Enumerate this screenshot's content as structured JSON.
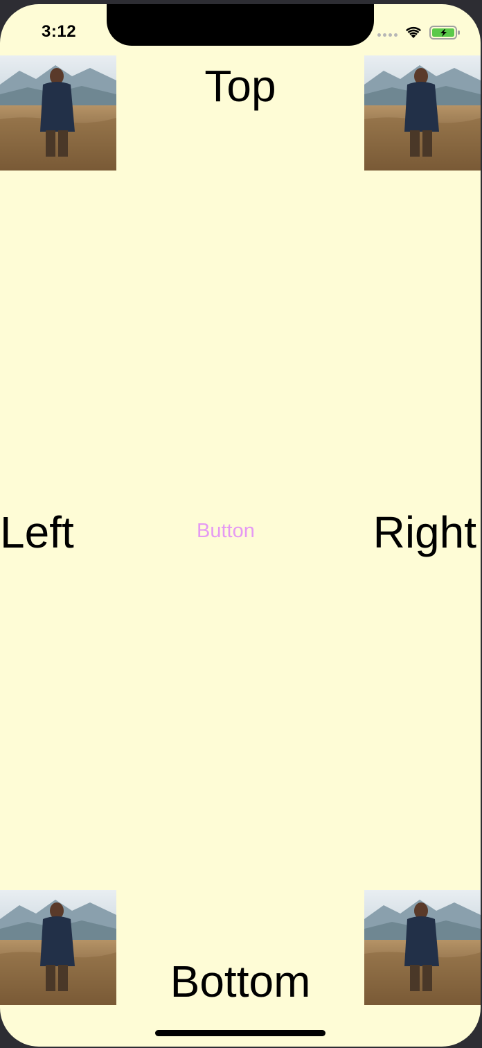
{
  "status_bar": {
    "time": "3:12",
    "icons": [
      "signal-dots-icon",
      "wifi-icon",
      "battery-charging-icon"
    ]
  },
  "labels": {
    "top": "Top",
    "left": "Left",
    "right": "Right",
    "bottom": "Bottom"
  },
  "button": {
    "label": "Button",
    "color": "#e59af3"
  },
  "photos": {
    "subject": "person-in-field-photo"
  },
  "colors": {
    "background": "#fefcd6",
    "text": "#000000",
    "battery": "#5ac94a"
  }
}
